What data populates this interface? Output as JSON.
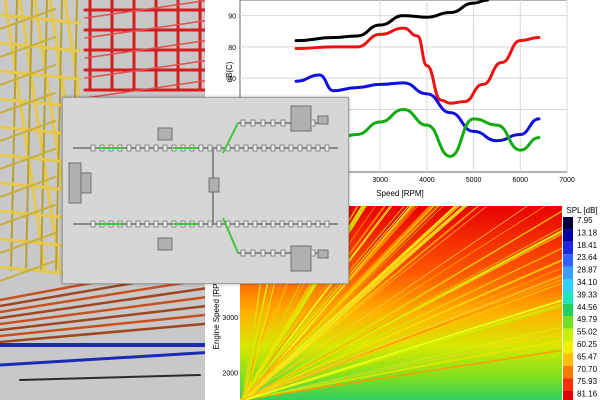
{
  "line_panel": {
    "xlabel": "Speed [RPM]",
    "ylabel": "dB(C)"
  },
  "heatmap_panel": {
    "ylabel": "Engine Speed [RPM]",
    "legend_title": "SPL [dB]",
    "legend_values": [
      "7.95",
      "13.18",
      "18.41",
      "23.64",
      "28.87",
      "34.10",
      "39.33",
      "44.56",
      "49.79",
      "55.02",
      "60.25",
      "65.47",
      "70.70",
      "75.93",
      "81.16"
    ],
    "legend_colors": [
      "#000040",
      "#0000a8",
      "#1a28e0",
      "#2f63ff",
      "#3d9cff",
      "#2fd0ff",
      "#20e6c0",
      "#22d060",
      "#6ee020",
      "#c8f000",
      "#f0f000",
      "#ffc000",
      "#ff7a00",
      "#ff3000",
      "#e00000"
    ],
    "background_color": "#f23c14"
  },
  "colors": {
    "lattice_yellow": "#e6c84a",
    "lattice_red": "#d21e1e",
    "pipe_blue": "#1e2ab4",
    "pipe_brown": "#a0461e",
    "network_green": "#3cc83c"
  },
  "chart_data": [
    {
      "type": "line",
      "xlabel": "Speed [RPM]",
      "ylabel": "dB(C)",
      "xlim": [
        0,
        7000
      ],
      "ylim": [
        40,
        95
      ],
      "x_ticks": [
        3000,
        4000,
        5000,
        6000,
        7000
      ],
      "y_ticks": [
        60,
        70,
        80,
        90
      ],
      "grid": true,
      "series": [
        {
          "color": "#000000",
          "x": [
            1200,
            2000,
            2500,
            3000,
            3500,
            4000,
            4500,
            5000,
            5300
          ],
          "y": [
            82,
            83,
            83.5,
            87,
            90,
            89.5,
            91,
            94,
            95
          ]
        },
        {
          "color": "#ee1111",
          "x": [
            1200,
            2000,
            2500,
            3000,
            3500,
            3800,
            4000,
            4300,
            4500,
            4800,
            5200,
            5600,
            6000,
            6400
          ],
          "y": [
            79.5,
            80,
            80,
            84,
            86,
            83.5,
            74,
            63,
            62,
            62.5,
            68,
            75,
            82,
            83
          ]
        },
        {
          "color": "#1010dd",
          "x": [
            1200,
            1700,
            2000,
            2500,
            3000,
            3500,
            4000,
            4500,
            5000,
            5500,
            6000,
            6400
          ],
          "y": [
            69,
            71,
            66,
            67,
            68,
            68.5,
            65,
            59,
            53,
            50,
            52,
            57
          ]
        },
        {
          "color": "#11aa11",
          "x": [
            1600,
            2000,
            2500,
            3000,
            3500,
            4000,
            4500,
            5000,
            5500,
            6000,
            6400
          ],
          "y": [
            48,
            50,
            52,
            56,
            60,
            55,
            45,
            57,
            55,
            47,
            51
          ]
        }
      ]
    },
    {
      "type": "heatmap",
      "ylabel": "Engine Speed [RPM]",
      "ylim": [
        1500,
        5000
      ],
      "y_ticks": [
        2000,
        3000,
        4000
      ],
      "legend_title": "SPL [dB]",
      "colorbar_values": [
        7.95,
        13.18,
        18.41,
        23.64,
        28.87,
        34.1,
        39.33,
        44.56,
        49.79,
        55.02,
        60.25,
        65.47,
        70.7,
        75.93,
        81.16
      ]
    }
  ]
}
